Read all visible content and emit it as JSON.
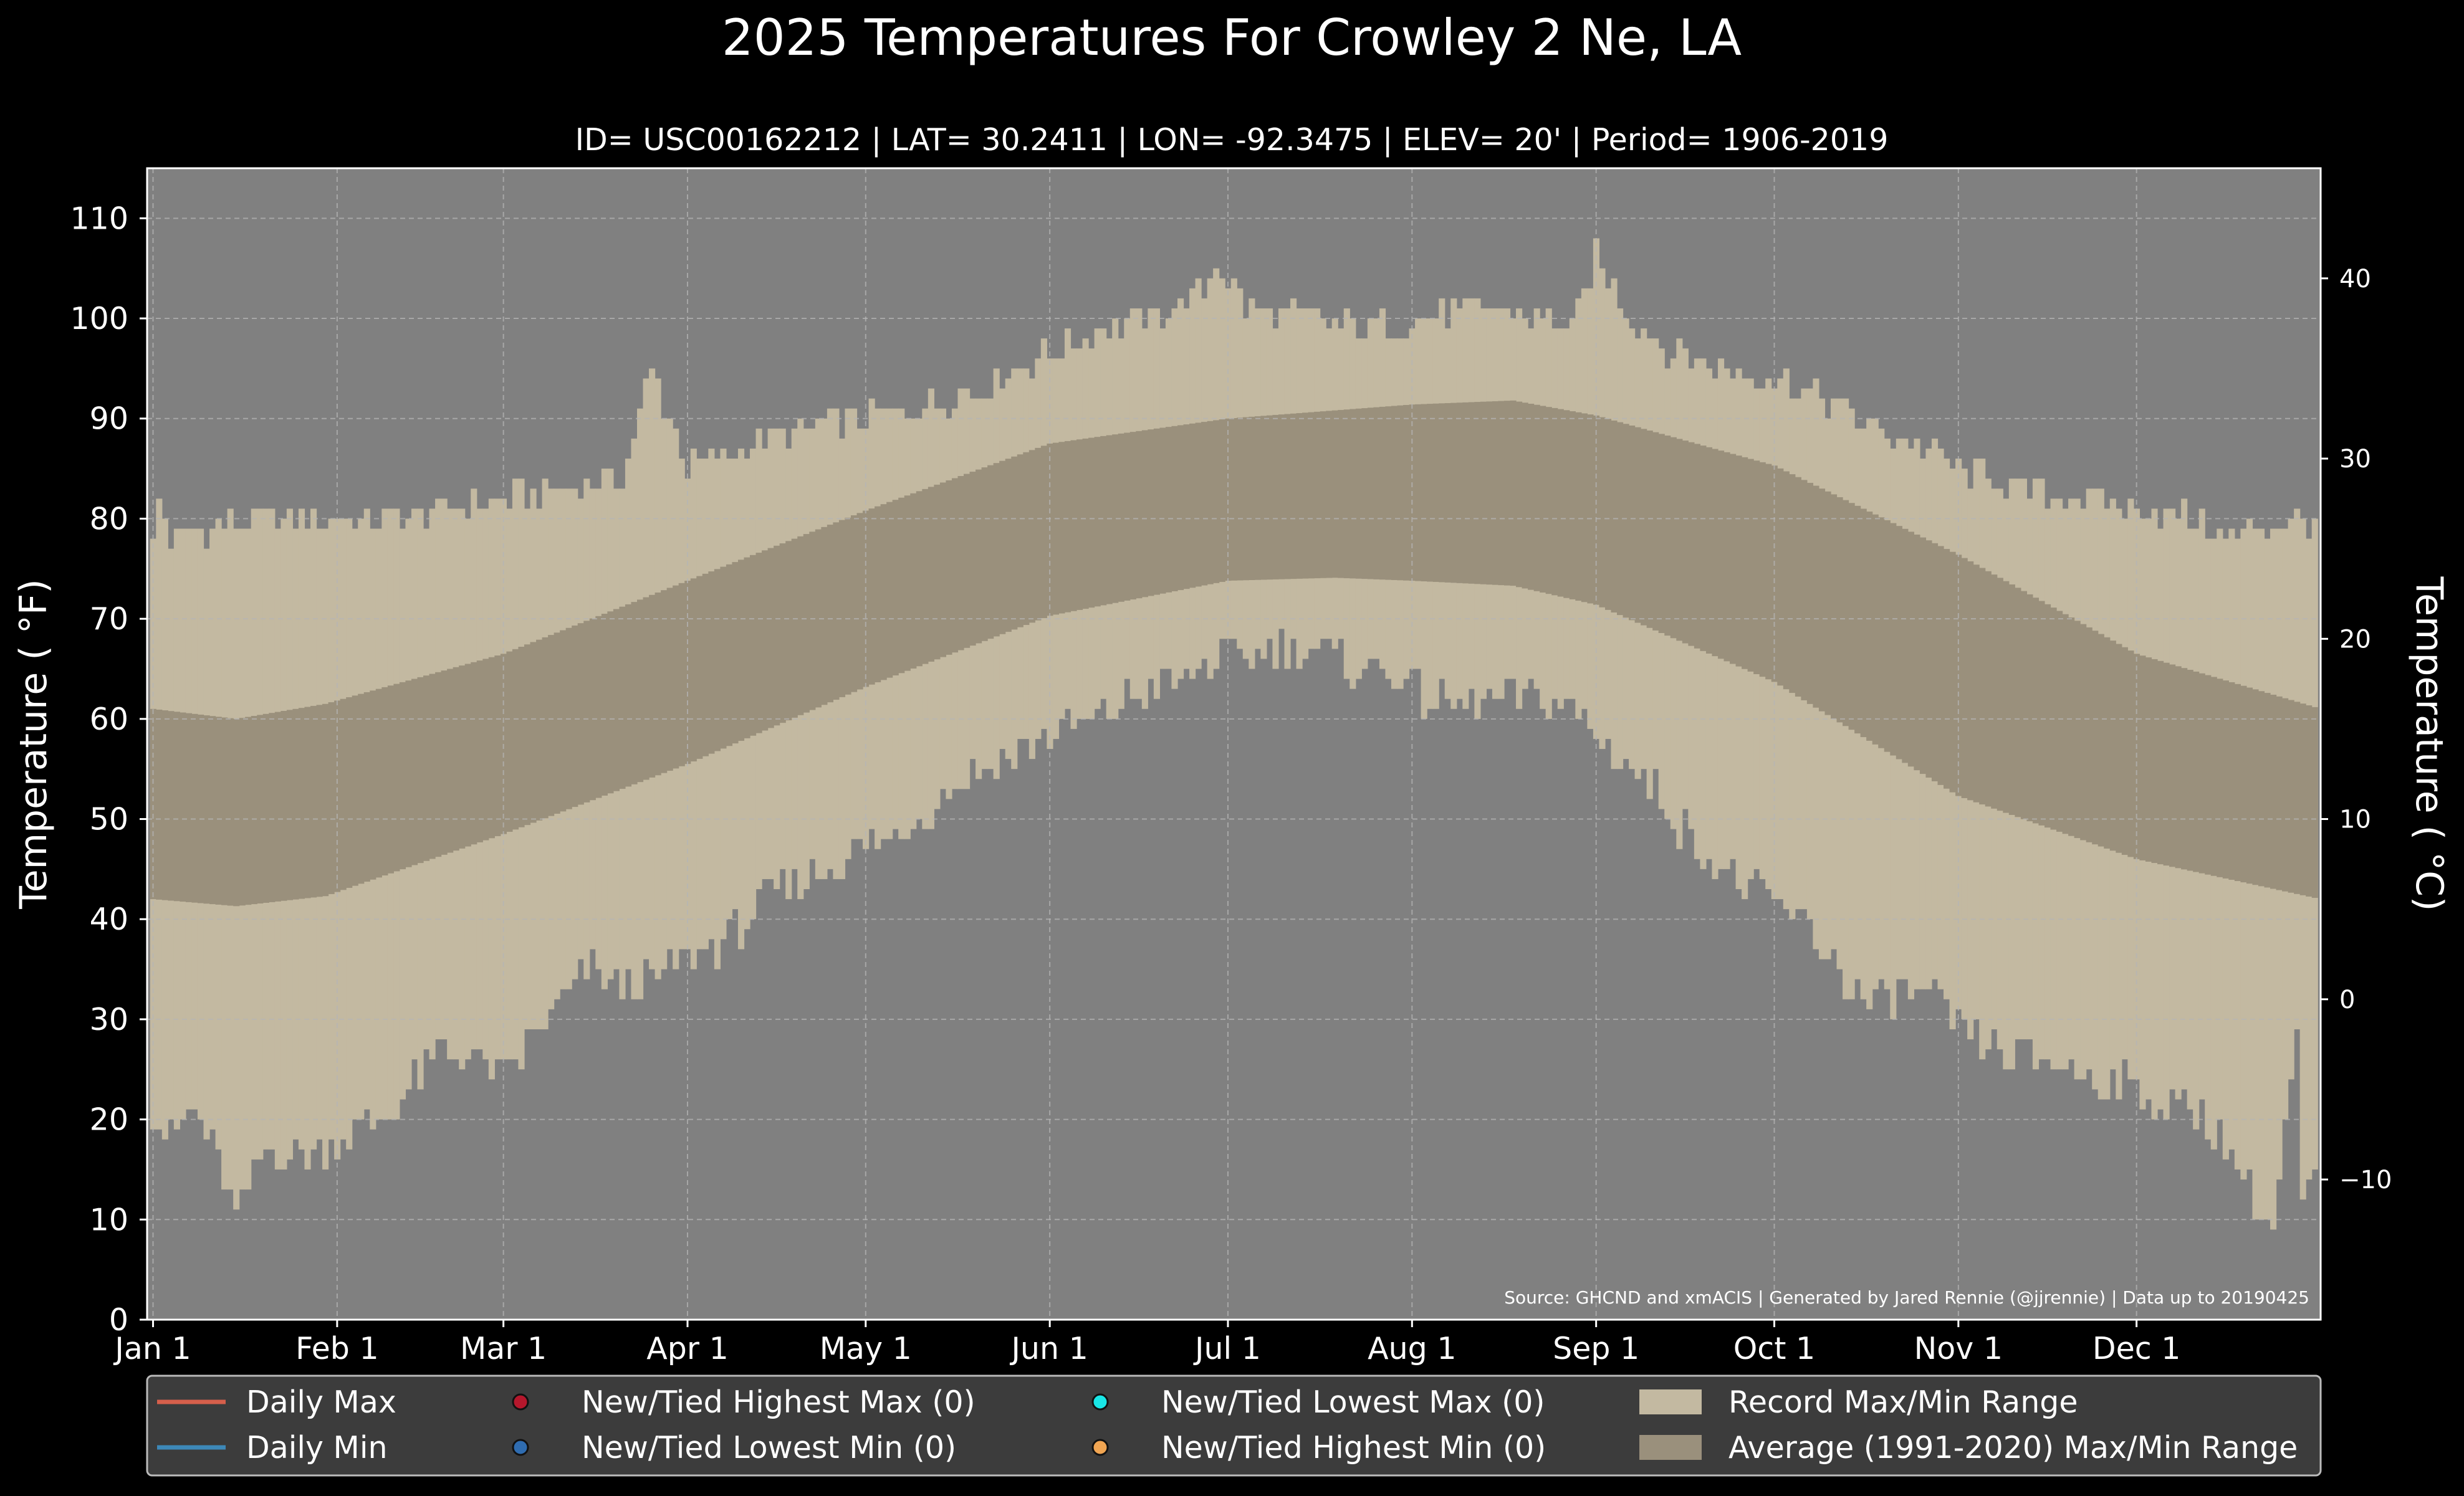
{
  "chart_data": {
    "type": "area",
    "title": "2025 Temperatures For Crowley 2 Ne, LA",
    "subtitle": "ID= USC00162212 | LAT= 30.2411 | LON= -92.3475 | ELEV= 20' | Period= 1906-2019",
    "ylabel": "Temperature ($^\\circ$F)",
    "ylabel_display": "Temperature ( °F)",
    "ylabel_right": "Temperature ( °C)",
    "ylim": [
      0,
      115
    ],
    "yticks": [
      "0",
      "10",
      "20",
      "30",
      "40",
      "50",
      "60",
      "70",
      "80",
      "90",
      "100",
      "110"
    ],
    "yticks_right": [
      "−10",
      "0",
      "10",
      "20",
      "30",
      "40"
    ],
    "xlim": [
      0,
      366
    ],
    "xticks": [
      {
        "day": 1,
        "label": "Jan 1"
      },
      {
        "day": 32,
        "label": "Feb 1"
      },
      {
        "day": 60,
        "label": "Mar 1"
      },
      {
        "day": 91,
        "label": "Apr 1"
      },
      {
        "day": 121,
        "label": "May 1"
      },
      {
        "day": 152,
        "label": "Jun 1"
      },
      {
        "day": 182,
        "label": "Jul 1"
      },
      {
        "day": 213,
        "label": "Aug 1"
      },
      {
        "day": 244,
        "label": "Sep 1"
      },
      {
        "day": 274,
        "label": "Oct 1"
      },
      {
        "day": 305,
        "label": "Nov 1"
      },
      {
        "day": 335,
        "label": "Dec 1"
      }
    ],
    "grid": true,
    "source": "Source: GHCND and xmACIS | Generated by Jared Rennie (@jjrennie) | Data up to 20190425",
    "record_max_anchors": [
      [
        1,
        77
      ],
      [
        2,
        82
      ],
      [
        4,
        78
      ],
      [
        10,
        79
      ],
      [
        20,
        80
      ],
      [
        30,
        80
      ],
      [
        40,
        80
      ],
      [
        50,
        81
      ],
      [
        60,
        82
      ],
      [
        70,
        83
      ],
      [
        80,
        84
      ],
      [
        85,
        95
      ],
      [
        91,
        85
      ],
      [
        100,
        87
      ],
      [
        110,
        89
      ],
      [
        120,
        90
      ],
      [
        130,
        91
      ],
      [
        140,
        93
      ],
      [
        150,
        96
      ],
      [
        160,
        99
      ],
      [
        170,
        100
      ],
      [
        178,
        103
      ],
      [
        180,
        106
      ],
      [
        185,
        101
      ],
      [
        195,
        100
      ],
      [
        205,
        99
      ],
      [
        215,
        100
      ],
      [
        225,
        101
      ],
      [
        235,
        100
      ],
      [
        240,
        99
      ],
      [
        244,
        106
      ],
      [
        250,
        100
      ],
      [
        256,
        97
      ],
      [
        265,
        95
      ],
      [
        275,
        94
      ],
      [
        285,
        91
      ],
      [
        295,
        88
      ],
      [
        305,
        85
      ],
      [
        315,
        83
      ],
      [
        325,
        82
      ],
      [
        335,
        81
      ],
      [
        345,
        80
      ],
      [
        350,
        78
      ],
      [
        355,
        79
      ],
      [
        365,
        80
      ]
    ],
    "record_min_anchors": [
      [
        1,
        21
      ],
      [
        4,
        18
      ],
      [
        8,
        21
      ],
      [
        10,
        19
      ],
      [
        12,
        16
      ],
      [
        15,
        10
      ],
      [
        20,
        17
      ],
      [
        25,
        16
      ],
      [
        30,
        17
      ],
      [
        35,
        19
      ],
      [
        40,
        20
      ],
      [
        45,
        24
      ],
      [
        50,
        27
      ],
      [
        55,
        26
      ],
      [
        60,
        24
      ],
      [
        65,
        28
      ],
      [
        70,
        32
      ],
      [
        75,
        35
      ],
      [
        80,
        33
      ],
      [
        85,
        34
      ],
      [
        90,
        36
      ],
      [
        95,
        37
      ],
      [
        100,
        39
      ],
      [
        105,
        42
      ],
      [
        110,
        44
      ],
      [
        115,
        45
      ],
      [
        120,
        47
      ],
      [
        125,
        48
      ],
      [
        130,
        50
      ],
      [
        135,
        53
      ],
      [
        140,
        55
      ],
      [
        145,
        56
      ],
      [
        150,
        58
      ],
      [
        155,
        59
      ],
      [
        160,
        60
      ],
      [
        165,
        62
      ],
      [
        170,
        63
      ],
      [
        175,
        64
      ],
      [
        180,
        66
      ],
      [
        185,
        66
      ],
      [
        190,
        67
      ],
      [
        195,
        67
      ],
      [
        200,
        66
      ],
      [
        205,
        65
      ],
      [
        210,
        65
      ],
      [
        215,
        62
      ],
      [
        220,
        61
      ],
      [
        225,
        62
      ],
      [
        230,
        62
      ],
      [
        235,
        62
      ],
      [
        240,
        61
      ],
      [
        245,
        58
      ],
      [
        250,
        55
      ],
      [
        255,
        52
      ],
      [
        260,
        48
      ],
      [
        265,
        45
      ],
      [
        270,
        43
      ],
      [
        275,
        41
      ],
      [
        280,
        39
      ],
      [
        285,
        35
      ],
      [
        290,
        31
      ],
      [
        295,
        33
      ],
      [
        300,
        32
      ],
      [
        305,
        29
      ],
      [
        310,
        27
      ],
      [
        315,
        26
      ],
      [
        320,
        26
      ],
      [
        325,
        25
      ],
      [
        330,
        24
      ],
      [
        335,
        23
      ],
      [
        340,
        21
      ],
      [
        345,
        21
      ],
      [
        350,
        18
      ],
      [
        355,
        12
      ],
      [
        358,
        9
      ],
      [
        360,
        19
      ],
      [
        362,
        27
      ],
      [
        363,
        12
      ],
      [
        365,
        14
      ]
    ],
    "avg_max_anchors": [
      [
        1,
        61
      ],
      [
        15,
        60
      ],
      [
        30,
        61.5
      ],
      [
        60,
        66.5
      ],
      [
        91,
        73.8
      ],
      [
        121,
        80.8
      ],
      [
        152,
        87.5
      ],
      [
        182,
        90
      ],
      [
        213,
        91.4
      ],
      [
        230,
        91.8
      ],
      [
        244,
        90.3
      ],
      [
        274,
        85.3
      ],
      [
        305,
        76.4
      ],
      [
        335,
        66.5
      ],
      [
        366,
        61
      ]
    ],
    "avg_min_anchors": [
      [
        1,
        42
      ],
      [
        15,
        41.3
      ],
      [
        30,
        42.3
      ],
      [
        60,
        48.5
      ],
      [
        91,
        55.5
      ],
      [
        121,
        63.2
      ],
      [
        152,
        70.3
      ],
      [
        182,
        73.8
      ],
      [
        200,
        74.1
      ],
      [
        213,
        73.8
      ],
      [
        230,
        73.3
      ],
      [
        244,
        71.4
      ],
      [
        274,
        63.7
      ],
      [
        305,
        52.3
      ],
      [
        335,
        46
      ],
      [
        366,
        42
      ]
    ],
    "legend": [
      {
        "label": "Daily Max",
        "kind": "line",
        "color": "#d65f4b"
      },
      {
        "label": "Daily Min",
        "kind": "line",
        "color": "#3d88b8"
      },
      {
        "label": "New/Tied Highest Max (0)",
        "kind": "dot",
        "color": "#b5172c"
      },
      {
        "label": "New/Tied Lowest Min (0)",
        "kind": "dot",
        "color": "#2f6cb0"
      },
      {
        "label": "New/Tied Lowest Max (0)",
        "kind": "dot",
        "color": "#19e6e6"
      },
      {
        "label": "New/Tied Highest Min (0)",
        "kind": "dot",
        "color": "#f0a552"
      },
      {
        "label": "Record Max/Min Range",
        "kind": "patch",
        "color": "#c3b9a1"
      },
      {
        "label": "Average (1991-2020) Max/Min Range",
        "kind": "patch",
        "color": "#9a907c"
      }
    ],
    "legend_placement": "bottom",
    "colors": {
      "background": "#000000",
      "plot_background": "#808080",
      "record_range": "#c3b9a1",
      "average_range": "#9a907c",
      "text": "#ffffff",
      "legend_background": "#3c3c3c"
    }
  }
}
